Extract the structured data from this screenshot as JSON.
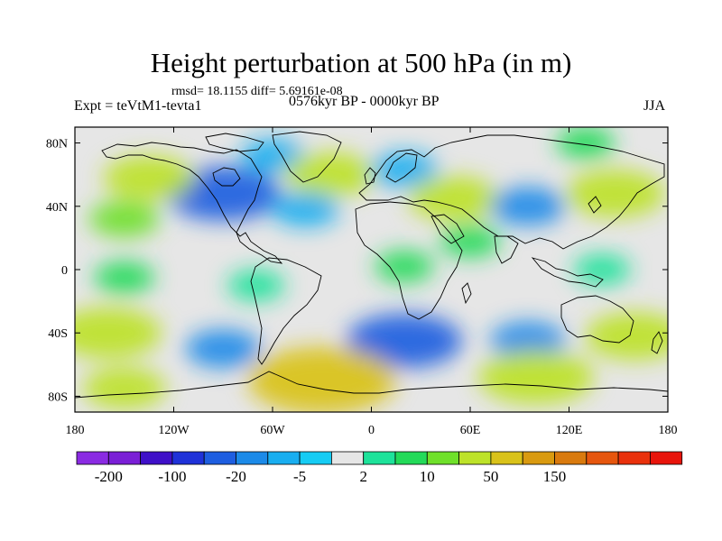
{
  "figure": {
    "title": "Height perturbation at 500 hPa (in m)",
    "stats": "rmsd= 18.1155 diff= 5.69161e-08",
    "left_string": "Expt = teVtM1-tevta1",
    "center_string": "0576kyr BP - 0000kyr BP",
    "right_string": "JJA"
  },
  "map": {
    "projection": "cylindrical-equidistant",
    "lon_range": [
      -180,
      180
    ],
    "lat_range": [
      -90,
      90
    ],
    "x_ticks": [
      {
        "value": -180,
        "label": "180"
      },
      {
        "value": -120,
        "label": "120W"
      },
      {
        "value": -60,
        "label": "60W"
      },
      {
        "value": 0,
        "label": "0"
      },
      {
        "value": 60,
        "label": "60E"
      },
      {
        "value": 120,
        "label": "120E"
      },
      {
        "value": 180,
        "label": "180"
      }
    ],
    "y_ticks": [
      {
        "value": 80,
        "label": "80N"
      },
      {
        "value": 40,
        "label": "40N"
      },
      {
        "value": 0,
        "label": "0"
      },
      {
        "value": -40,
        "label": "40S"
      },
      {
        "value": -80,
        "label": "80S"
      }
    ],
    "background_color": "#e6e6e6",
    "anomalies": [
      {
        "lon": -90,
        "lat": 48,
        "value": -40
      },
      {
        "lon": -60,
        "lat": 72,
        "value": -8
      },
      {
        "lon": -135,
        "lat": 58,
        "value": 25
      },
      {
        "lon": -25,
        "lat": 60,
        "value": 25
      },
      {
        "lon": 20,
        "lat": 63,
        "value": -10
      },
      {
        "lon": -40,
        "lat": 38,
        "value": -10
      },
      {
        "lon": 50,
        "lat": 45,
        "value": 25
      },
      {
        "lon": 95,
        "lat": 40,
        "value": -15
      },
      {
        "lon": 148,
        "lat": 48,
        "value": 30
      },
      {
        "lon": 130,
        "lat": 80,
        "value": 5
      },
      {
        "lon": -150,
        "lat": 32,
        "value": 12
      },
      {
        "lon": 60,
        "lat": 18,
        "value": 6
      },
      {
        "lon": -150,
        "lat": -5,
        "value": 6
      },
      {
        "lon": -70,
        "lat": -10,
        "value": 4
      },
      {
        "lon": 20,
        "lat": 2,
        "value": 5
      },
      {
        "lon": 140,
        "lat": 0,
        "value": 4
      },
      {
        "lon": -160,
        "lat": -40,
        "value": 35
      },
      {
        "lon": 160,
        "lat": -42,
        "value": 30
      },
      {
        "lon": -90,
        "lat": -50,
        "value": -15
      },
      {
        "lon": 20,
        "lat": -45,
        "value": -40
      },
      {
        "lon": 95,
        "lat": -45,
        "value": -15
      },
      {
        "lon": -30,
        "lat": -70,
        "value": 60
      },
      {
        "lon": 100,
        "lat": -68,
        "value": 40
      },
      {
        "lon": -150,
        "lat": -75,
        "value": 20
      }
    ]
  },
  "labelbar": {
    "colors": [
      "#8a2be2",
      "#7a1fd6",
      "#3f10c8",
      "#1f32d8",
      "#1e5ee0",
      "#1c8ae8",
      "#19aef0",
      "#16ccf4",
      "#e6e6e6",
      "#1ee29a",
      "#23da59",
      "#6fe02a",
      "#bde229",
      "#d9c21a",
      "#d99a10",
      "#d97a0e",
      "#e6560e",
      "#e9310c",
      "#e8140b"
    ],
    "labels": [
      {
        "after_box": 1,
        "text": "-200"
      },
      {
        "after_box": 3,
        "text": "-100"
      },
      {
        "after_box": 5,
        "text": "-20"
      },
      {
        "after_box": 7,
        "text": "-5"
      },
      {
        "after_box": 9,
        "text": "2"
      },
      {
        "after_box": 11,
        "text": "10"
      },
      {
        "after_box": 13,
        "text": "50"
      },
      {
        "after_box": 15,
        "text": "150"
      }
    ]
  }
}
